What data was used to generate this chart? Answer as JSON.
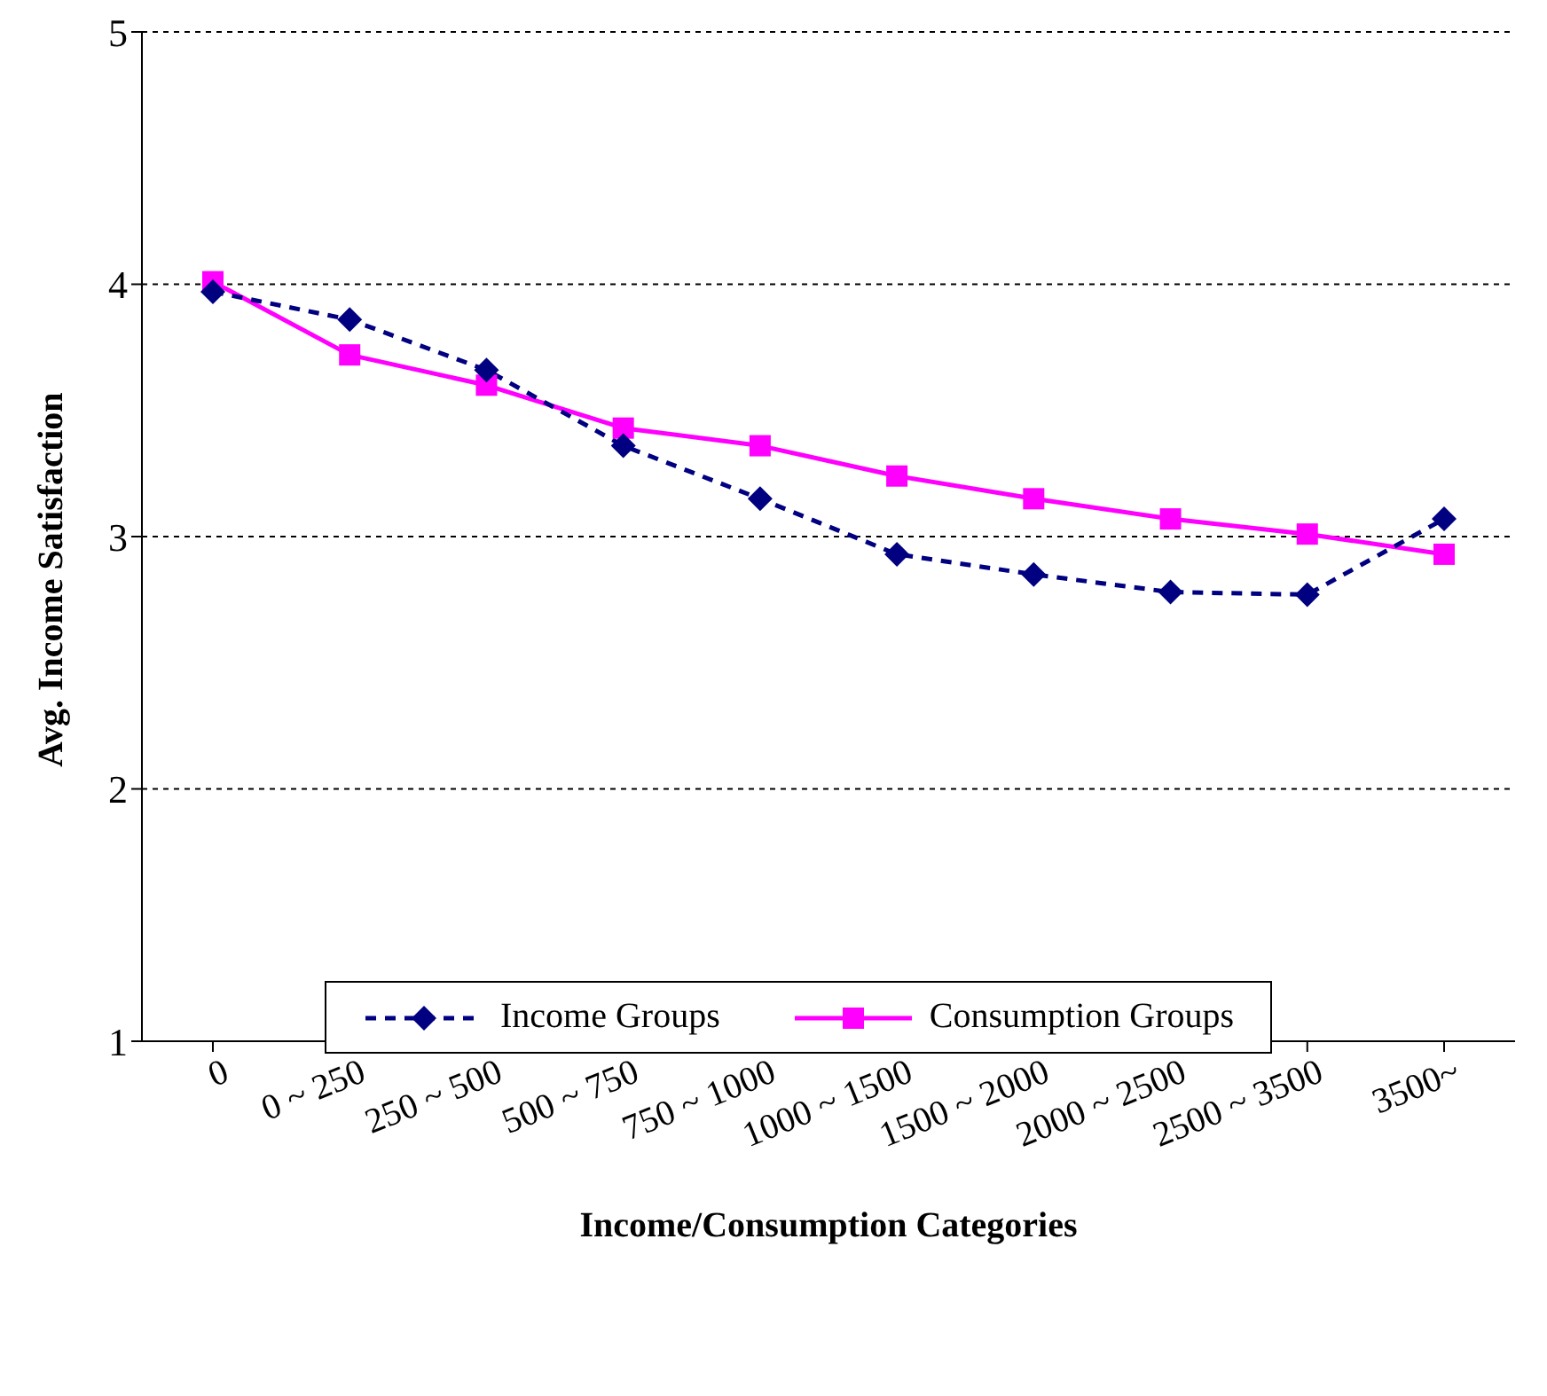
{
  "chart_data": {
    "type": "line",
    "xlabel": "Income/Consumption Categories",
    "ylabel": "Avg. Income Satisfaction",
    "categories": [
      "0",
      "0 ~ 250",
      "250 ~ 500",
      "500 ~ 750",
      "750 ~ 1000",
      "1000 ~ 1500",
      "1500 ~ 2000",
      "2000 ~ 2500",
      "2500 ~ 3500",
      "3500~"
    ],
    "series": [
      {
        "name": "Income Groups",
        "color": "#000080",
        "marker": "diamond",
        "line_style": "dashed",
        "values": [
          3.97,
          3.86,
          3.66,
          3.36,
          3.15,
          2.93,
          2.85,
          2.78,
          2.77,
          3.07
        ]
      },
      {
        "name": "Consumption Groups",
        "color": "#ff00ff",
        "marker": "square",
        "line_style": "solid",
        "values": [
          4.01,
          3.72,
          3.6,
          3.43,
          3.36,
          3.24,
          3.15,
          3.07,
          3.01,
          2.93
        ]
      }
    ],
    "ylim": [
      1,
      5
    ],
    "yticks": [
      1,
      2,
      3,
      4,
      5
    ],
    "grid": "y",
    "legend": "bottom"
  }
}
